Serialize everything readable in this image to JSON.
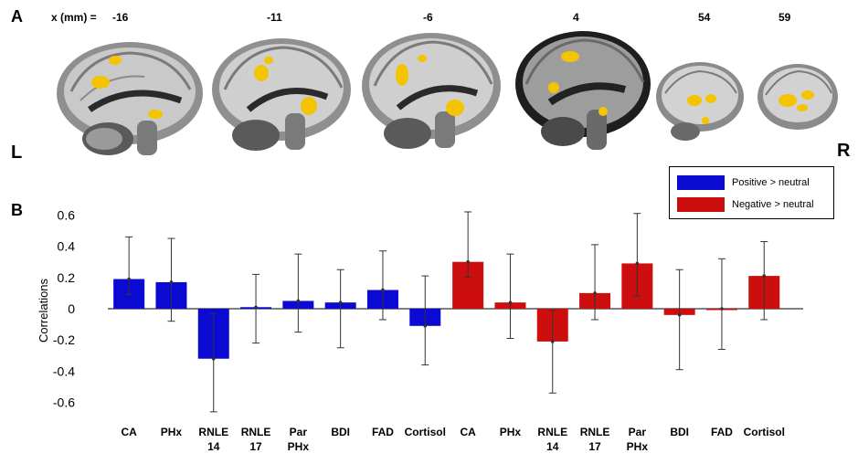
{
  "panel_a": {
    "label": "A",
    "x_header": "x (mm) =",
    "slices": [
      "-16",
      "-11",
      "-6",
      "4",
      "54",
      "59"
    ],
    "left_label": "L",
    "right_label": "R"
  },
  "panel_b": {
    "label": "B"
  },
  "legend": {
    "positive": "Positive > neutral",
    "negative": "Negative > neutral"
  },
  "colors": {
    "positive": "#0a0ad2",
    "negative": "#cc0e0e",
    "activation": "#f5c400"
  },
  "chart_data": {
    "type": "bar",
    "ylabel": "Correlations",
    "ylim": [
      -0.7,
      0.7
    ],
    "yticks": [
      -0.6,
      -0.4,
      -0.2,
      0,
      0.2,
      0.4,
      0.6
    ],
    "ytick_labels": [
      "-0.6",
      "-0.4",
      "-0.2",
      "0",
      "0.2",
      "0.4",
      "0.6"
    ],
    "categories": [
      [
        "CA"
      ],
      [
        "PHx"
      ],
      [
        "RNLE",
        "14"
      ],
      [
        "RNLE",
        "17"
      ],
      [
        "Par",
        "PHx"
      ],
      [
        "BDI"
      ],
      [
        "FAD"
      ],
      [
        "Cortisol"
      ]
    ],
    "series": [
      {
        "name": "Positive > neutral",
        "values": [
          0.19,
          0.17,
          -0.32,
          0.01,
          0.05,
          0.04,
          0.12,
          -0.11
        ],
        "err_low": [
          0.09,
          -0.08,
          -0.66,
          -0.22,
          -0.15,
          -0.25,
          -0.07,
          -0.36
        ],
        "err_high": [
          0.46,
          0.45,
          -0.03,
          0.22,
          0.35,
          0.25,
          0.37,
          0.21
        ]
      },
      {
        "name": "Negative > neutral",
        "values": [
          0.3,
          0.04,
          -0.21,
          0.1,
          0.29,
          -0.04,
          0.0,
          0.21
        ],
        "err_low": [
          0.2,
          -0.19,
          -0.54,
          -0.07,
          0.08,
          -0.39,
          -0.26,
          -0.07
        ],
        "err_high": [
          0.62,
          0.35,
          -0.01,
          0.41,
          0.61,
          0.25,
          0.32,
          0.43
        ]
      }
    ]
  }
}
